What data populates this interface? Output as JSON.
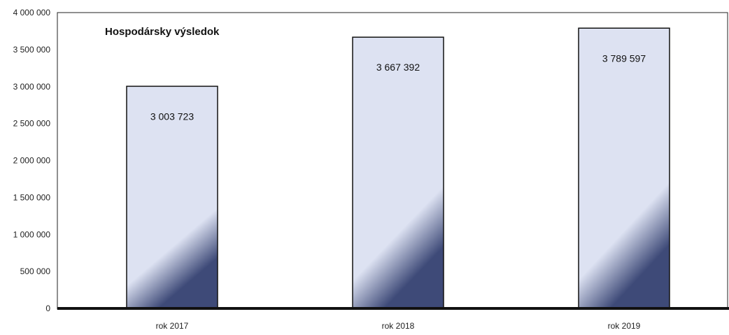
{
  "chart_data": {
    "type": "bar",
    "title": "Hospodársky výsledok",
    "xlabel": "",
    "ylabel": "",
    "ylim": [
      0,
      4000000
    ],
    "yticks": [
      0,
      500000,
      1000000,
      1500000,
      2000000,
      2500000,
      3000000,
      3500000,
      4000000
    ],
    "ytick_labels": [
      "0",
      "500 000",
      "1 000 000",
      "1 500 000",
      "2 000 000",
      "2 500 000",
      "3 000 000",
      "3 500 000",
      "4 000 000"
    ],
    "categories": [
      "rok 2017",
      "rok 2018",
      "rok 2019"
    ],
    "values": [
      3003723,
      3667392,
      3789597
    ],
    "value_labels": [
      "3 003 723",
      "3 667 392",
      "3 789 597"
    ],
    "grid": false,
    "legend": "none",
    "colors": {
      "bar_fill": "#dde2f2",
      "bar_shade": "#3e4a78",
      "bar_stroke": "#111111"
    }
  }
}
